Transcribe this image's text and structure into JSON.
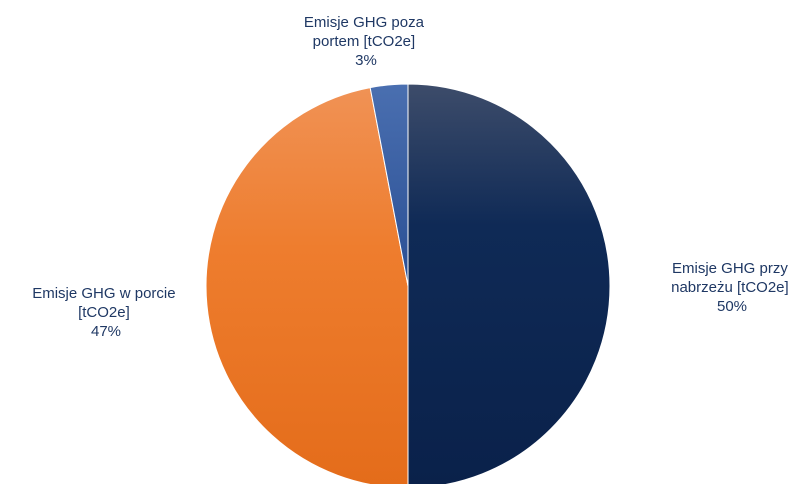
{
  "chart_data": {
    "type": "pie",
    "slices": [
      {
        "label_lines": [
          "Emisje GHG przy",
          "nabrzeżu [tCO2e]"
        ],
        "percent_label": "50%",
        "value": 50,
        "color": "#0d2550"
      },
      {
        "label_lines": [
          "Emisje GHG w porcie",
          "[tCO2e]"
        ],
        "percent_label": "47%",
        "value": 47,
        "color": "#ee7b2a"
      },
      {
        "label_lines": [
          "Emisje GHG poza",
          "portem [tCO2e]"
        ],
        "percent_label": "3%",
        "value": 3,
        "color": "#2f5597"
      }
    ],
    "label_color": "#1f3864"
  }
}
